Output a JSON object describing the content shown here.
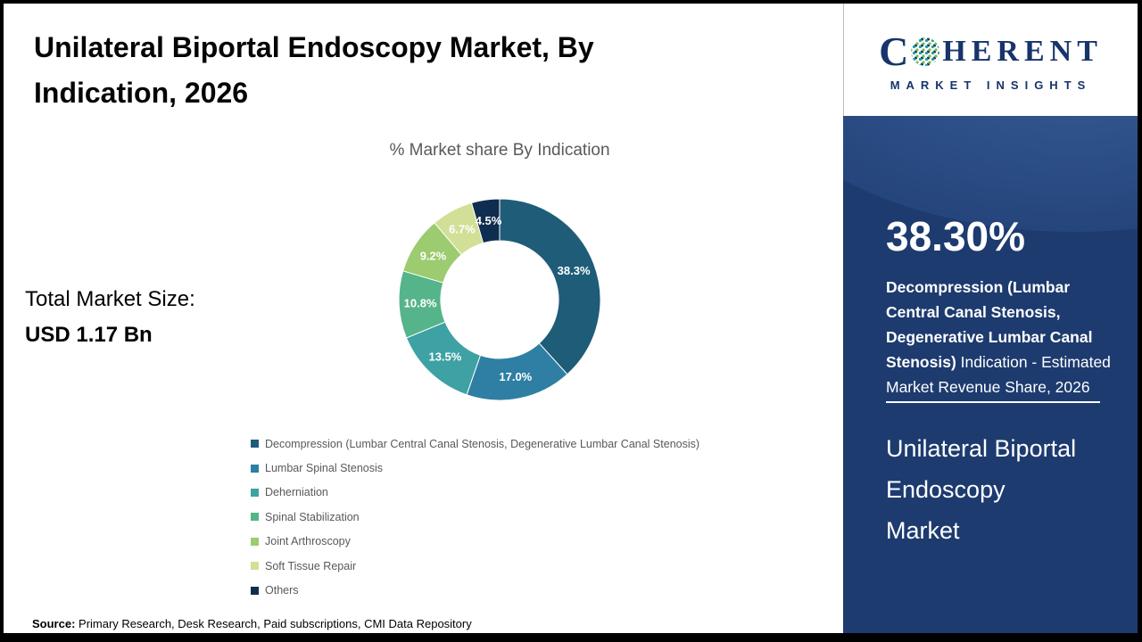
{
  "header": {
    "title": "Unilateral Biportal Endoscopy Market, By Indication, 2026"
  },
  "chart_data": {
    "type": "pie",
    "donut": true,
    "title": "% Market share By Indication",
    "unit": "%",
    "direction": "clockwise",
    "start_angle_deg": 0,
    "legend_position": "bottom-left",
    "segments": [
      {
        "label": "Decompression (Lumbar Central Canal Stenosis, Degenerative Lumbar Canal Stenosis)",
        "value": 38.3,
        "display": "38.3%",
        "color": "#1F5C78"
      },
      {
        "label": "Lumbar Spinal Stenosis",
        "value": 17.0,
        "display": "17.0%",
        "color": "#2E7FA3"
      },
      {
        "label": "Deherniation",
        "value": 13.5,
        "display": "13.5%",
        "color": "#3EA1A4"
      },
      {
        "label": "Spinal Stabilization",
        "value": 10.8,
        "display": "10.8%",
        "color": "#55B489"
      },
      {
        "label": "Joint Arthroscopy",
        "value": 9.2,
        "display": "9.2%",
        "color": "#9CCB70"
      },
      {
        "label": "Soft Tissue Repair",
        "value": 6.7,
        "display": "6.7%",
        "color": "#D2DF97"
      },
      {
        "label": "Others",
        "value": 4.5,
        "display": "4.5%",
        "color": "#0F2D4E"
      }
    ]
  },
  "total_market": {
    "label": "Total Market Size:",
    "value": "USD 1.17 Bn"
  },
  "source": {
    "label": "Source:",
    "text": " Primary Research, Desk Research, Paid subscriptions, CMI Data Repository"
  },
  "sidebar": {
    "logo": {
      "brand_c": "C",
      "brand_rest": "HERENT",
      "subtitle": "MARKET INSIGHTS"
    },
    "stat_value": "38.30%",
    "stat_bold": "Decompression (Lumbar Central Canal Stenosis, Degenerative Lumbar Canal Stenosis)",
    "stat_rest": " Indication - Estimated Market Revenue Share, 2026",
    "market_line1": "Unilateral Biportal",
    "market_line2": "Endoscopy",
    "market_line3": "Market"
  }
}
